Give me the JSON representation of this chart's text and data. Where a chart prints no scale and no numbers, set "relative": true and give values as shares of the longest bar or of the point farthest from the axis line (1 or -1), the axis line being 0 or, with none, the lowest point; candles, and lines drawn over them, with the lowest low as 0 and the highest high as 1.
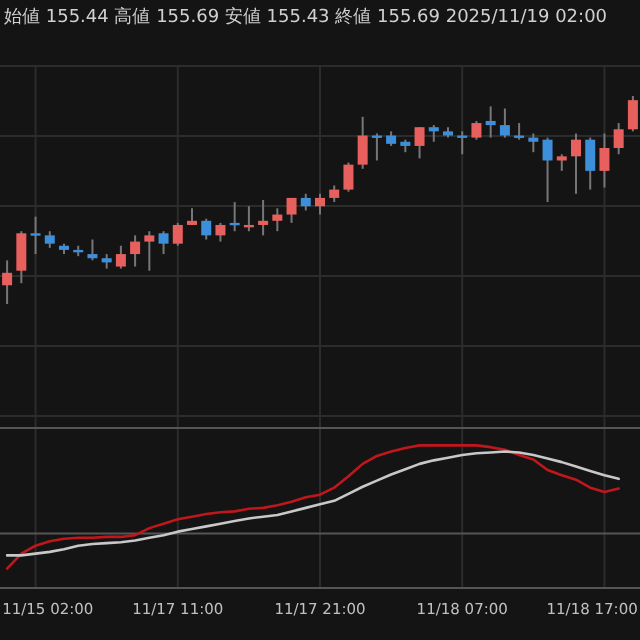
{
  "chart_data": [
    {
      "type": "candlestick",
      "title": "始値 155.44 高値 155.69 安値 155.43 終値 155.69 2025/11/19 02:00",
      "relative": true,
      "grid": true,
      "tick_labels": false,
      "categories": [
        null,
        null,
        null,
        null,
        null,
        null,
        null,
        null,
        null,
        null,
        null,
        null,
        null,
        null,
        null,
        null,
        null,
        null,
        null,
        null,
        null,
        null,
        null,
        null,
        null,
        null,
        null,
        null,
        null,
        null,
        null,
        null,
        null,
        null,
        null,
        null,
        null,
        null,
        null,
        null,
        null,
        null,
        null,
        null,
        null
      ],
      "ohlc": [
        [
          0.09,
          0.21,
          0.0,
          0.15
        ],
        [
          0.16,
          0.35,
          0.1,
          0.34
        ],
        [
          0.34,
          0.42,
          0.24,
          0.34
        ],
        [
          0.33,
          0.35,
          0.27,
          0.29
        ],
        [
          0.28,
          0.29,
          0.24,
          0.26
        ],
        [
          0.26,
          0.28,
          0.23,
          0.25
        ],
        [
          0.24,
          0.31,
          0.21,
          0.22
        ],
        [
          0.22,
          0.24,
          0.17,
          0.2
        ],
        [
          0.18,
          0.28,
          0.17,
          0.24
        ],
        [
          0.24,
          0.33,
          0.18,
          0.3
        ],
        [
          0.3,
          0.35,
          0.16,
          0.33
        ],
        [
          0.34,
          0.35,
          0.24,
          0.29
        ],
        [
          0.29,
          0.39,
          0.28,
          0.38
        ],
        [
          0.38,
          0.46,
          0.38,
          0.4
        ],
        [
          0.4,
          0.41,
          0.31,
          0.33
        ],
        [
          0.33,
          0.39,
          0.3,
          0.38
        ],
        [
          0.39,
          0.49,
          0.35,
          0.38
        ],
        [
          0.37,
          0.47,
          0.35,
          0.38
        ],
        [
          0.38,
          0.5,
          0.33,
          0.4
        ],
        [
          0.4,
          0.46,
          0.35,
          0.43
        ],
        [
          0.43,
          0.51,
          0.39,
          0.51
        ],
        [
          0.51,
          0.53,
          0.45,
          0.47
        ],
        [
          0.47,
          0.53,
          0.43,
          0.51
        ],
        [
          0.51,
          0.57,
          0.49,
          0.55
        ],
        [
          0.55,
          0.68,
          0.54,
          0.67
        ],
        [
          0.67,
          0.9,
          0.65,
          0.81
        ],
        [
          0.81,
          0.82,
          0.69,
          0.81
        ],
        [
          0.81,
          0.83,
          0.76,
          0.77
        ],
        [
          0.78,
          0.79,
          0.73,
          0.76
        ],
        [
          0.76,
          0.85,
          0.7,
          0.85
        ],
        [
          0.85,
          0.86,
          0.78,
          0.83
        ],
        [
          0.83,
          0.85,
          0.8,
          0.81
        ],
        [
          0.81,
          0.83,
          0.72,
          0.8
        ],
        [
          0.8,
          0.88,
          0.79,
          0.87
        ],
        [
          0.88,
          0.95,
          0.8,
          0.86
        ],
        [
          0.86,
          0.94,
          0.8,
          0.81
        ],
        [
          0.81,
          0.87,
          0.79,
          0.8
        ],
        [
          0.8,
          0.82,
          0.73,
          0.78
        ],
        [
          0.79,
          0.8,
          0.49,
          0.69
        ],
        [
          0.69,
          0.72,
          0.64,
          0.71
        ],
        [
          0.71,
          0.82,
          0.53,
          0.79
        ],
        [
          0.79,
          0.8,
          0.55,
          0.64
        ],
        [
          0.64,
          0.82,
          0.56,
          0.75
        ],
        [
          0.75,
          0.87,
          0.72,
          0.84
        ],
        [
          0.84,
          1.0,
          0.83,
          0.98
        ]
      ],
      "colors": [
        "#e8605e",
        "#e8605e",
        "#3d8fdc",
        "#3d8fdc",
        "#3d8fdc",
        "#3d8fdc",
        "#3d8fdc",
        "#3d8fdc",
        "#e8605e",
        "#e8605e",
        "#e8605e",
        "#3d8fdc",
        "#e8605e",
        "#e8605e",
        "#3d8fdc",
        "#e8605e",
        "#3d8fdc",
        "#e8605e",
        "#e8605e",
        "#e8605e",
        "#e8605e",
        "#3d8fdc",
        "#e8605e",
        "#e8605e",
        "#e8605e",
        "#e8605e",
        "#3d8fdc",
        "#3d8fdc",
        "#3d8fdc",
        "#e8605e",
        "#3d8fdc",
        "#3d8fdc",
        "#3d8fdc",
        "#e8605e",
        "#3d8fdc",
        "#3d8fdc",
        "#3d8fdc",
        "#3d8fdc",
        "#3d8fdc",
        "#e8605e",
        "#e8605e",
        "#3d8fdc",
        "#e8605e",
        "#e8605e",
        "#e8605e"
      ]
    },
    {
      "type": "line",
      "relative": true,
      "grid": true,
      "tick_labels": "x",
      "ref_lines": [
        {
          "axis": "y",
          "value": 0,
          "color": "#555555"
        }
      ],
      "categories": [
        null,
        null,
        "11/15 02:00",
        null,
        null,
        null,
        null,
        null,
        null,
        null,
        null,
        null,
        "11/17 11:00",
        null,
        null,
        null,
        null,
        null,
        null,
        null,
        null,
        null,
        "11/17 21:00",
        null,
        null,
        null,
        null,
        null,
        null,
        null,
        null,
        null,
        "11/18 07:00",
        null,
        null,
        null,
        null,
        null,
        null,
        null,
        null,
        null,
        "11/18 17:00",
        null,
        null
      ],
      "series": [
        {
          "color": "#c0171d",
          "values": [
            -0.4,
            -0.23,
            -0.14,
            -0.09,
            -0.06,
            -0.05,
            -0.05,
            -0.04,
            -0.04,
            -0.02,
            0.06,
            0.11,
            0.16,
            0.19,
            0.22,
            0.24,
            0.25,
            0.28,
            0.29,
            0.32,
            0.36,
            0.41,
            0.44,
            0.52,
            0.65,
            0.79,
            0.88,
            0.93,
            0.97,
            1.0,
            1.0,
            1.0,
            1.0,
            1.0,
            0.98,
            0.95,
            0.89,
            0.84,
            0.72,
            0.66,
            0.61,
            0.52,
            0.47,
            0.51,
            null
          ]
        },
        {
          "color": "#c8c8c8",
          "values": [
            -0.25,
            -0.25,
            -0.23,
            -0.21,
            -0.18,
            -0.14,
            -0.12,
            -0.11,
            -0.1,
            -0.08,
            -0.05,
            -0.02,
            0.02,
            0.05,
            0.08,
            0.11,
            0.14,
            0.17,
            0.19,
            0.21,
            0.25,
            0.29,
            0.33,
            0.37,
            0.45,
            0.53,
            0.6,
            0.67,
            0.73,
            0.79,
            0.83,
            0.86,
            0.89,
            0.91,
            0.92,
            0.93,
            0.92,
            0.89,
            0.85,
            0.81,
            0.76,
            0.71,
            0.66,
            0.62,
            null
          ]
        }
      ]
    }
  ]
}
